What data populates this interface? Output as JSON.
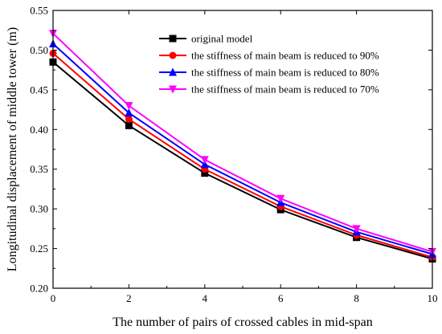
{
  "chart_data": {
    "type": "line",
    "title": "",
    "xlabel": "The number of pairs of crossed cables in mid-span",
    "ylabel": "Longitudinal displacement of middle tower (m)",
    "x": [
      0,
      2,
      4,
      6,
      8,
      10
    ],
    "xlim": [
      0,
      10
    ],
    "ylim": [
      0.2,
      0.55
    ],
    "xticks": [
      0,
      2,
      4,
      6,
      8,
      10
    ],
    "yticks": [
      0.2,
      0.25,
      0.3,
      0.35,
      0.4,
      0.45,
      0.5,
      0.55
    ],
    "xtick_labels": [
      "0",
      "2",
      "4",
      "6",
      "8",
      "10"
    ],
    "ytick_labels": [
      "0.20",
      "0.25",
      "0.30",
      "0.35",
      "0.40",
      "0.45",
      "0.50",
      "0.55"
    ],
    "grid": false,
    "legend_position": "top-right",
    "series": [
      {
        "name": "original model",
        "color": "#000000",
        "marker": "square",
        "values": [
          0.485,
          0.405,
          0.345,
          0.299,
          0.264,
          0.237
        ]
      },
      {
        "name": "the stiffness of main beam is reduced to 90%",
        "color": "#ff0000",
        "marker": "circle",
        "values": [
          0.496,
          0.413,
          0.35,
          0.303,
          0.267,
          0.239
        ]
      },
      {
        "name": "the stiffness of main beam is reduced to 80%",
        "color": "#0000ff",
        "marker": "triangle-up",
        "values": [
          0.508,
          0.421,
          0.356,
          0.308,
          0.271,
          0.243
        ]
      },
      {
        "name": "the stiffness of main beam is reduced to 70%",
        "color": "#ff00ff",
        "marker": "triangle-down",
        "values": [
          0.521,
          0.43,
          0.362,
          0.313,
          0.275,
          0.246
        ]
      }
    ]
  }
}
